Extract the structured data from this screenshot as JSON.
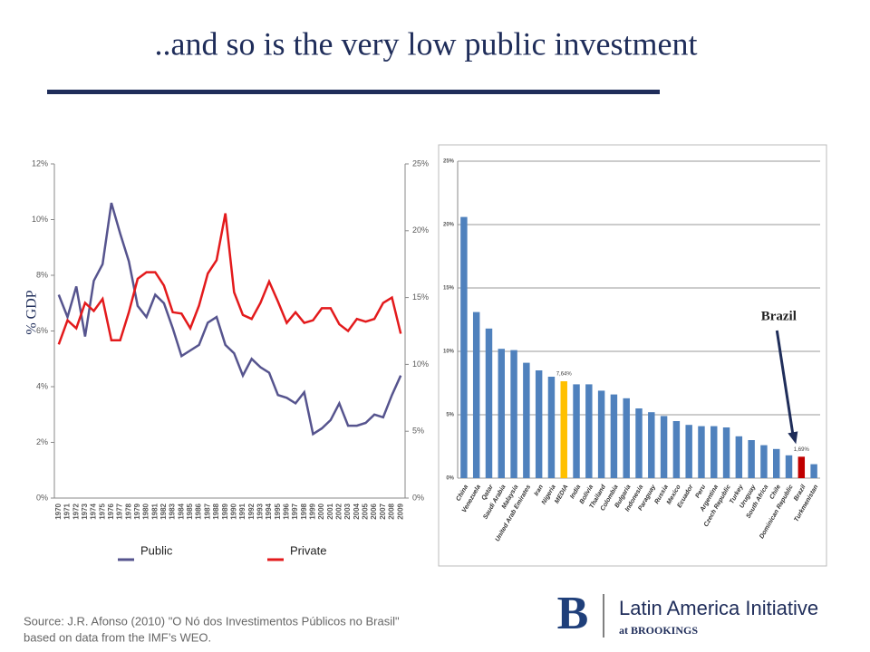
{
  "title": "..and so is the very low public investment",
  "source": [
    "Source: J.R. Afonso (2010) \"O Nó dos Investimentos Públicos no Brasil\"",
    "based on data from the IMF’s WEO."
  ],
  "logo": {
    "name": "Latin America Initiative",
    "sub": "at BROOKINGS"
  },
  "chart_data": [
    {
      "type": "line",
      "ylabel": "% GDP",
      "categories": [
        "1970",
        "1971",
        "1972",
        "1973",
        "1974",
        "1975",
        "1976",
        "1977",
        "1978",
        "1979",
        "1980",
        "1981",
        "1982",
        "1983",
        "1984",
        "1985",
        "1986",
        "1987",
        "1988",
        "1989",
        "1990",
        "1991",
        "1992",
        "1993",
        "1994",
        "1995",
        "1996",
        "1997",
        "1998",
        "1999",
        "2000",
        "2001",
        "2002",
        "2003",
        "2004",
        "2005",
        "2006",
        "2007",
        "2008",
        "2009"
      ],
      "series": [
        {
          "name": "Public",
          "color": "#56548e",
          "axis": "y",
          "values": [
            7.3,
            6.5,
            7.6,
            5.8,
            7.8,
            8.4,
            10.6,
            9.5,
            8.5,
            6.9,
            6.5,
            7.3,
            7.0,
            6.1,
            5.1,
            5.3,
            5.5,
            6.3,
            6.5,
            5.5,
            5.2,
            4.4,
            5.0,
            4.7,
            4.5,
            3.7,
            3.6,
            3.4,
            3.8,
            2.3,
            2.5,
            2.8,
            3.4,
            2.6,
            2.6,
            2.7,
            3.0,
            2.9,
            3.7,
            4.4
          ]
        },
        {
          "name": "Private",
          "color": "#e31a1c",
          "axis": "y2",
          "values": [
            11.5,
            13.3,
            12.7,
            14.6,
            14.0,
            14.9,
            11.8,
            11.8,
            13.9,
            16.4,
            16.9,
            16.9,
            15.9,
            13.9,
            13.8,
            12.7,
            14.4,
            16.8,
            17.8,
            21.3,
            15.4,
            13.7,
            13.4,
            14.6,
            16.2,
            14.7,
            13.1,
            13.9,
            13.1,
            13.3,
            14.2,
            14.2,
            13.0,
            12.5,
            13.4,
            13.2,
            13.4,
            14.6,
            15.0,
            12.3
          ]
        }
      ],
      "ylim": [
        0,
        12
      ],
      "yticks": [
        {
          "value": 0,
          "label": "0%"
        },
        {
          "value": 2,
          "label": "2%"
        },
        {
          "value": 4,
          "label": "4%"
        },
        {
          "value": 6,
          "label": "6%"
        },
        {
          "value": 8,
          "label": "8%"
        },
        {
          "value": 10,
          "label": "10%"
        },
        {
          "value": 12,
          "label": "12%"
        }
      ],
      "y2lim": [
        0,
        25
      ],
      "y2ticks": [
        {
          "value": 0,
          "label": "0%"
        },
        {
          "value": 5,
          "label": "5%"
        },
        {
          "value": 10,
          "label": "10%"
        },
        {
          "value": 15,
          "label": "15%"
        },
        {
          "value": 20,
          "label": "20%"
        },
        {
          "value": 25,
          "label": "25%"
        }
      ],
      "grid": false,
      "legend": "bottom"
    },
    {
      "type": "bar",
      "categories": [
        "China",
        "Venezuela",
        "Qatar",
        "Saudi Arabia",
        "Malaysia",
        "United Arab Emirates",
        "Iran",
        "Nigeria",
        "MEDIA",
        "India",
        "Bolivia",
        "Thailand",
        "Colombia",
        "Bulgaria",
        "Indonesia",
        "Paraguay",
        "Russia",
        "Mexico",
        "Ecuador",
        "Peru",
        "Argentina",
        "Czech Republic",
        "Turkey",
        "Uruguay",
        "South Africa",
        "Chile",
        "Dominican Republic",
        "Brazil",
        "Turkmenistan"
      ],
      "values": [
        20.6,
        13.1,
        11.8,
        10.2,
        10.1,
        9.1,
        8.5,
        8.0,
        7.64,
        7.4,
        7.4,
        6.9,
        6.6,
        6.3,
        5.5,
        5.2,
        4.9,
        4.5,
        4.2,
        4.1,
        4.1,
        4.0,
        3.3,
        3.0,
        2.6,
        2.3,
        1.8,
        1.69,
        1.1
      ],
      "value_labels": [
        null,
        null,
        null,
        null,
        null,
        null,
        null,
        null,
        "7,64%",
        null,
        null,
        null,
        null,
        null,
        null,
        null,
        null,
        null,
        null,
        null,
        null,
        null,
        null,
        null,
        null,
        null,
        null,
        "1,69%",
        null
      ],
      "colors": [
        "#4f81bd",
        "#4f81bd",
        "#4f81bd",
        "#4f81bd",
        "#4f81bd",
        "#4f81bd",
        "#4f81bd",
        "#4f81bd",
        "#ffc000",
        "#4f81bd",
        "#4f81bd",
        "#4f81bd",
        "#4f81bd",
        "#4f81bd",
        "#4f81bd",
        "#4f81bd",
        "#4f81bd",
        "#4f81bd",
        "#4f81bd",
        "#4f81bd",
        "#4f81bd",
        "#4f81bd",
        "#4f81bd",
        "#4f81bd",
        "#4f81bd",
        "#4f81bd",
        "#4f81bd",
        "#c00000",
        "#4f81bd"
      ],
      "ylim": [
        0,
        25
      ],
      "yticks": [
        {
          "value": 0,
          "label": "0%"
        },
        {
          "value": 5,
          "label": "5%"
        },
        {
          "value": 10,
          "label": "10%"
        },
        {
          "value": 15,
          "label": "15%"
        },
        {
          "value": 20,
          "label": "20%"
        },
        {
          "value": 25,
          "label": "25%"
        }
      ],
      "grid": true,
      "annotation": "Brazil"
    }
  ]
}
